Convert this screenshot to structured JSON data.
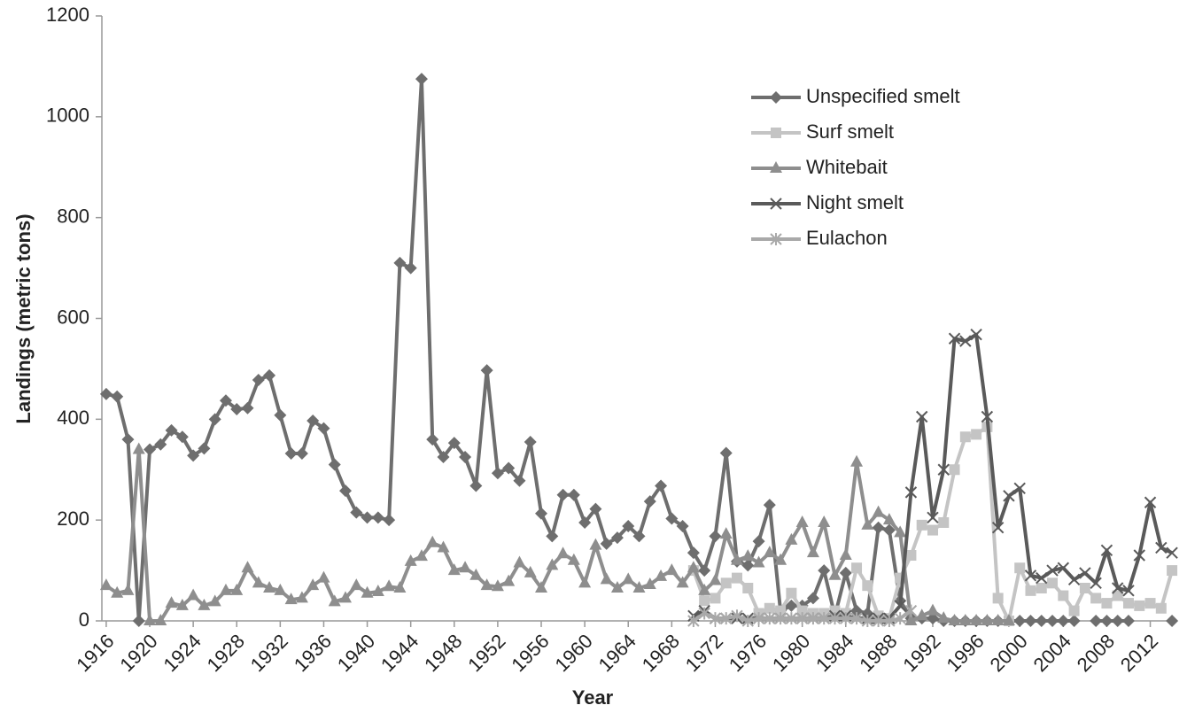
{
  "chart_data": {
    "type": "line",
    "xlabel": "Year",
    "ylabel": "Landings (metric tons)",
    "x": [
      1916,
      1917,
      1918,
      1919,
      1920,
      1921,
      1922,
      1923,
      1924,
      1925,
      1926,
      1927,
      1928,
      1929,
      1930,
      1931,
      1932,
      1933,
      1934,
      1935,
      1936,
      1937,
      1938,
      1939,
      1940,
      1941,
      1942,
      1943,
      1944,
      1945,
      1946,
      1947,
      1948,
      1949,
      1950,
      1951,
      1952,
      1953,
      1954,
      1955,
      1956,
      1957,
      1958,
      1959,
      1960,
      1961,
      1962,
      1963,
      1964,
      1965,
      1966,
      1967,
      1968,
      1969,
      1970,
      1971,
      1972,
      1973,
      1974,
      1975,
      1976,
      1977,
      1978,
      1979,
      1980,
      1981,
      1982,
      1983,
      1984,
      1985,
      1986,
      1987,
      1988,
      1989,
      1990,
      1991,
      1992,
      1993,
      1994,
      1995,
      1996,
      1997,
      1998,
      1999,
      2000,
      2001,
      2002,
      2003,
      2004,
      2005,
      2006,
      2007,
      2008,
      2009,
      2010,
      2011,
      2012,
      2013,
      2014
    ],
    "xlim": [
      1915.6,
      2014.4
    ],
    "xticks": [
      1916,
      1920,
      1924,
      1928,
      1932,
      1936,
      1940,
      1944,
      1948,
      1952,
      1956,
      1960,
      1964,
      1968,
      1972,
      1976,
      1980,
      1984,
      1988,
      1992,
      1996,
      2000,
      2004,
      2008,
      2012
    ],
    "ylim": [
      0,
      1200
    ],
    "yticks": [
      0,
      200,
      400,
      600,
      800,
      1000,
      1200
    ],
    "legend": "upper right",
    "series": [
      {
        "name": "Unspecified smelt",
        "color": "#6e6e6e",
        "marker": "diamond",
        "values": [
          450,
          445,
          360,
          0,
          340,
          350,
          378,
          365,
          328,
          342,
          400,
          437,
          420,
          422,
          478,
          487,
          408,
          332,
          332,
          397,
          382,
          310,
          258,
          215,
          205,
          205,
          200,
          710,
          700,
          1075,
          360,
          325,
          353,
          325,
          268,
          497,
          293,
          303,
          278,
          355,
          213,
          168,
          250,
          250,
          195,
          222,
          153,
          165,
          188,
          168,
          237,
          268,
          203,
          188,
          135,
          100,
          168,
          333,
          118,
          110,
          158,
          230,
          20,
          30,
          30,
          45,
          100,
          10,
          95,
          20,
          15,
          185,
          180,
          40,
          5,
          5,
          5,
          0,
          0,
          0,
          0,
          0,
          0,
          0,
          0,
          0,
          0,
          0,
          0,
          0,
          null,
          0,
          0,
          0,
          0,
          null,
          null,
          null,
          0
        ]
      },
      {
        "name": "Surf smelt",
        "color": "#c4c4c4",
        "marker": "square",
        "values": [
          null,
          null,
          null,
          null,
          null,
          null,
          null,
          null,
          null,
          null,
          null,
          null,
          null,
          null,
          null,
          null,
          null,
          null,
          null,
          null,
          null,
          null,
          null,
          null,
          null,
          null,
          null,
          null,
          null,
          null,
          null,
          null,
          null,
          null,
          null,
          null,
          null,
          null,
          null,
          null,
          null,
          null,
          null,
          null,
          null,
          null,
          null,
          null,
          null,
          null,
          null,
          null,
          null,
          null,
          100,
          40,
          45,
          75,
          85,
          65,
          15,
          25,
          20,
          55,
          20,
          15,
          15,
          20,
          15,
          105,
          70,
          10,
          5,
          85,
          130,
          190,
          180,
          195,
          300,
          365,
          370,
          385,
          45,
          0,
          105,
          60,
          65,
          75,
          50,
          20,
          65,
          45,
          35,
          50,
          35,
          30,
          35,
          25,
          100
        ]
      },
      {
        "name": "Whitebait",
        "color": "#8e8e8e",
        "marker": "triangle",
        "values": [
          70,
          55,
          60,
          340,
          0,
          0,
          35,
          30,
          50,
          30,
          38,
          60,
          60,
          105,
          75,
          65,
          60,
          42,
          45,
          70,
          85,
          38,
          45,
          70,
          55,
          58,
          68,
          65,
          118,
          128,
          155,
          145,
          100,
          105,
          90,
          70,
          68,
          78,
          115,
          95,
          65,
          110,
          133,
          120,
          75,
          150,
          82,
          65,
          82,
          65,
          72,
          88,
          100,
          75,
          105,
          60,
          80,
          172,
          120,
          128,
          115,
          135,
          120,
          160,
          195,
          135,
          195,
          90,
          130,
          315,
          190,
          215,
          200,
          175,
          0,
          10,
          20,
          5,
          0,
          0,
          0,
          0,
          0,
          0,
          null,
          null,
          null,
          null,
          null,
          null,
          null,
          null,
          null,
          null,
          null,
          null,
          null,
          null,
          null
        ]
      },
      {
        "name": "Night smelt",
        "color": "#5a5a5a",
        "marker": "x",
        "values": [
          null,
          null,
          null,
          null,
          null,
          null,
          null,
          null,
          null,
          null,
          null,
          null,
          null,
          null,
          null,
          null,
          null,
          null,
          null,
          null,
          null,
          null,
          null,
          null,
          null,
          null,
          null,
          null,
          null,
          null,
          null,
          null,
          null,
          null,
          null,
          null,
          null,
          null,
          null,
          null,
          null,
          null,
          null,
          null,
          null,
          null,
          null,
          null,
          null,
          null,
          null,
          null,
          null,
          null,
          10,
          20,
          5,
          5,
          5,
          5,
          5,
          5,
          5,
          5,
          5,
          5,
          5,
          10,
          10,
          5,
          5,
          5,
          5,
          30,
          255,
          405,
          205,
          300,
          560,
          555,
          568,
          405,
          185,
          248,
          263,
          90,
          85,
          100,
          105,
          82,
          95,
          75,
          140,
          65,
          60,
          130,
          235,
          145,
          135
        ]
      },
      {
        "name": "Eulachon",
        "color": "#a9a9a9",
        "marker": "asterisk",
        "values": [
          null,
          null,
          null,
          null,
          null,
          null,
          null,
          null,
          null,
          null,
          null,
          null,
          null,
          null,
          null,
          null,
          null,
          null,
          null,
          null,
          null,
          null,
          null,
          null,
          null,
          null,
          null,
          null,
          null,
          null,
          null,
          null,
          null,
          null,
          null,
          null,
          null,
          null,
          null,
          null,
          null,
          null,
          null,
          null,
          null,
          null,
          null,
          null,
          null,
          null,
          null,
          null,
          null,
          null,
          0,
          15,
          5,
          5,
          10,
          0,
          5,
          5,
          5,
          5,
          5,
          5,
          5,
          5,
          5,
          5,
          0,
          0,
          0,
          5,
          20,
          null,
          null,
          null,
          null,
          null,
          null,
          null,
          null,
          null,
          null,
          null,
          null,
          null,
          null,
          null,
          null,
          null,
          null,
          null,
          null,
          null,
          null,
          null,
          null
        ]
      }
    ]
  }
}
